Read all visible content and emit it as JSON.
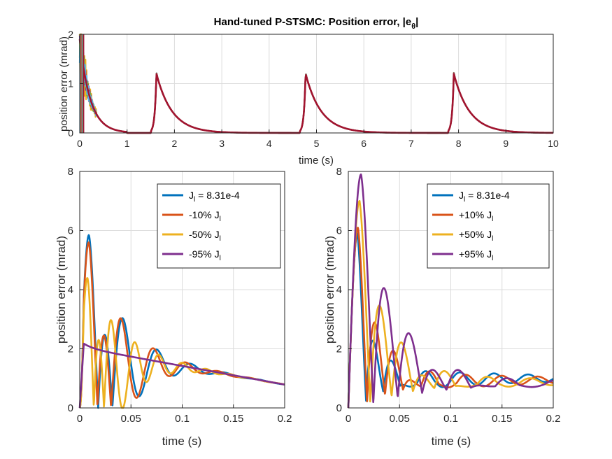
{
  "colors": {
    "blue": "#0072BD",
    "orange": "#D95319",
    "yellow": "#EDB120",
    "purple": "#7E2F8E",
    "green": "#77AC30",
    "cyan": "#4DBEEE",
    "red": "#A2142F"
  },
  "chart_data": [
    {
      "id": "top",
      "type": "line",
      "title_main": "Hand-tuned P-STSMC: Position error, |e",
      "title_sub": "θ",
      "title_end": "|",
      "xlabel": "time (s)",
      "ylabel": "position error (mrad)",
      "xlim": [
        0,
        10
      ],
      "ylim": [
        0,
        2
      ],
      "xticks": [
        "0",
        "1",
        "2",
        "3",
        "4",
        "5",
        "6",
        "7",
        "8",
        "9",
        "10"
      ],
      "yticks": [
        "0",
        "1",
        "2"
      ],
      "grid": true,
      "peaks": [
        {
          "t": 1.62,
          "value": 1.2
        },
        {
          "t": 4.77,
          "value": 1.2
        },
        {
          "t": 7.9,
          "value": 1.2
        }
      ],
      "series": [
        {
          "color": "#0072BD"
        },
        {
          "color": "#D95319"
        },
        {
          "color": "#EDB120"
        },
        {
          "color": "#7E2F8E"
        },
        {
          "color": "#77AC30"
        },
        {
          "color": "#4DBEEE"
        },
        {
          "color": "#A2142F"
        }
      ]
    },
    {
      "id": "bottom-left",
      "type": "line",
      "xlabel": "time (s)",
      "ylabel": "position error (mrad)",
      "xlim": [
        0,
        0.2
      ],
      "ylim": [
        0,
        8
      ],
      "xticks": [
        "0",
        "0.05",
        "0.1",
        "0.15",
        "0.2"
      ],
      "yticks": [
        "0",
        "2",
        "4",
        "6",
        "8"
      ],
      "grid": true,
      "legend_position": "top-right",
      "series": [
        {
          "legend_main": "J",
          "legend_sub": "l",
          "legend_tail": " = 8.31e-4",
          "color": "#0072BD",
          "params": {
            "a": 5.85,
            "base0": 2.0,
            "decay": 0.006,
            "f": 30.0,
            "lag": 0.009
          }
        },
        {
          "legend_main": "-10% J",
          "legend_sub": "l",
          "legend_tail": "",
          "color": "#D95319",
          "params": {
            "a": 5.6,
            "base0": 2.0,
            "decay": 0.006,
            "f": 31.5,
            "lag": 0.0088
          }
        },
        {
          "legend_main": "-50% J",
          "legend_sub": "l",
          "legend_tail": "",
          "color": "#EDB120",
          "params": {
            "a": 4.4,
            "base0": 2.0,
            "decay": 0.0055,
            "f": 43.0,
            "lag": 0.0075
          }
        },
        {
          "legend_main": "-95% J",
          "legend_sub": "l",
          "legend_tail": "",
          "color": "#7E2F8E",
          "params": {
            "a": 0.0,
            "base0": 2.0,
            "decay": 0.0,
            "f": 0.0,
            "lag": 0.0
          }
        }
      ]
    },
    {
      "id": "bottom-right",
      "type": "line",
      "xlabel": "time (s)",
      "ylabel": "position error (mrad)",
      "xlim": [
        0,
        0.2
      ],
      "ylim": [
        0,
        8
      ],
      "xticks": [
        "0",
        "0.05",
        "0.1",
        "0.15",
        "0.2"
      ],
      "yticks": [
        "0",
        "2",
        "4",
        "6",
        "8"
      ],
      "grid": true,
      "legend_position": "top-right",
      "series": [
        {
          "legend_main": "J",
          "legend_sub": "l",
          "legend_tail": " = 8.31e-4",
          "color": "#0072BD",
          "params": {
            "a": 5.9,
            "base": 1.0,
            "decay": 0.025,
            "f": 30.0,
            "lag": 0.009
          }
        },
        {
          "legend_main": "+10% J",
          "legend_sub": "l",
          "legend_tail": "",
          "color": "#D95319",
          "params": {
            "a": 6.1,
            "base": 0.95,
            "decay": 0.03,
            "f": 28.5,
            "lag": 0.0095
          }
        },
        {
          "legend_main": "+50% J",
          "legend_sub": "l",
          "legend_tail": "",
          "color": "#EDB120",
          "params": {
            "a": 7.0,
            "base": 0.9,
            "decay": 0.045,
            "f": 24.0,
            "lag": 0.011
          }
        },
        {
          "legend_main": "+95% J",
          "legend_sub": "l",
          "legend_tail": "",
          "color": "#7E2F8E",
          "params": {
            "a": 7.9,
            "base": 0.85,
            "decay": 0.09,
            "f": 21.0,
            "lag": 0.0125
          }
        }
      ]
    }
  ]
}
